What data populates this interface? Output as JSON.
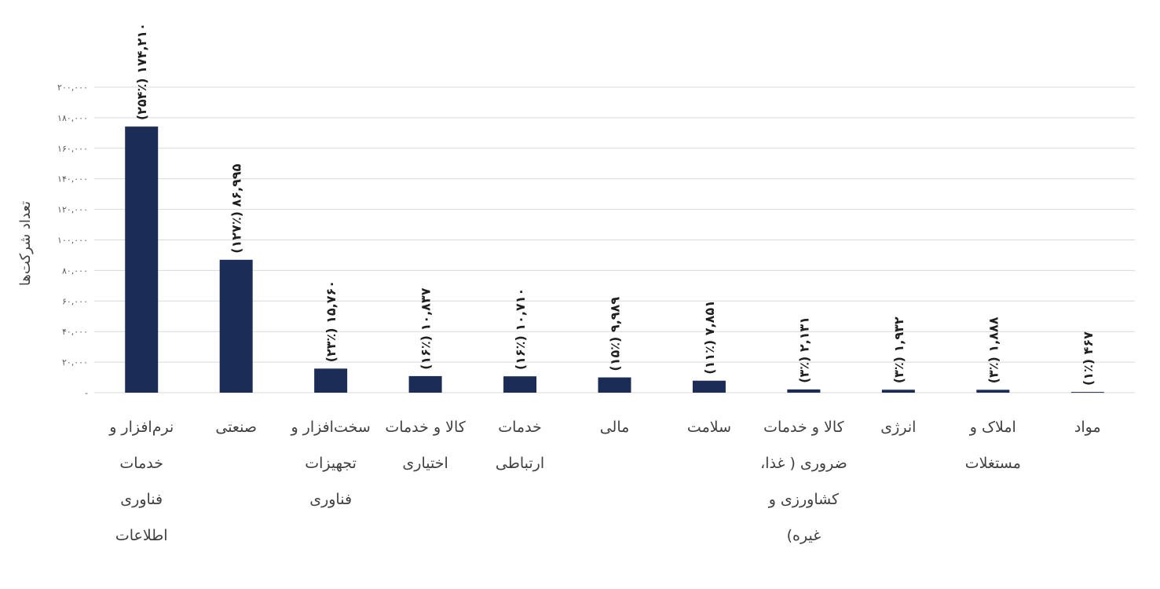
{
  "chart_data": {
    "type": "bar",
    "ylabel": "تعداد شرکت‌ها",
    "ylim": [
      0,
      200000
    ],
    "grid": true,
    "bar_color": "#1b2c57",
    "grid_color": "#d9d9d9",
    "y_ticks": [
      {
        "value": 0,
        "label": "-"
      },
      {
        "value": 20000,
        "label": "۲۰,۰۰۰"
      },
      {
        "value": 40000,
        "label": "۴۰,۰۰۰"
      },
      {
        "value": 60000,
        "label": "۶۰,۰۰۰"
      },
      {
        "value": 80000,
        "label": "۸۰,۰۰۰"
      },
      {
        "value": 100000,
        "label": "۱۰۰,۰۰۰"
      },
      {
        "value": 120000,
        "label": "۱۲۰,۰۰۰"
      },
      {
        "value": 140000,
        "label": "۱۴۰,۰۰۰"
      },
      {
        "value": 160000,
        "label": "۱۶۰,۰۰۰"
      },
      {
        "value": 180000,
        "label": "۱۸۰,۰۰۰"
      },
      {
        "value": 200000,
        "label": "۲۰۰,۰۰۰"
      }
    ],
    "categories": [
      "نرم‌افزار و خدمات فناوری اطلاعات",
      "صنعتی",
      "سخت‌افزار و تجهیزات فناوری",
      "کالا و خدمات اختیاری",
      "خدمات ارتباطی",
      "مالی",
      "سلامت",
      "کالا و خدمات ضروری ( غذا، کشاورزی و غیره)",
      "انرژی",
      "املاک و مستغلات",
      "مواد"
    ],
    "category_lines": [
      [
        "نرم‌افزار و",
        "خدمات",
        "فناوری",
        "اطلاعات"
      ],
      [
        "صنعتی"
      ],
      [
        "سخت‌افزار و",
        "تجهیزات",
        "فناوری"
      ],
      [
        "کالا و خدمات",
        "اختیاری"
      ],
      [
        "خدمات",
        "ارتباطی"
      ],
      [
        "مالی"
      ],
      [
        "سلامت"
      ],
      [
        "کالا و خدمات",
        "ضروری ( غذا،",
        "کشاورزی و",
        "غیره)"
      ],
      [
        "انرژی"
      ],
      [
        "املاک و",
        "مستغلات"
      ],
      [
        "مواد"
      ]
    ],
    "values": [
      174210,
      86995,
      15760,
      10837,
      10710,
      9989,
      7851,
      2131,
      1932,
      1888,
      467
    ],
    "data_labels": [
      "۱۷۴,۲۱۰ (۲۵۴٪)",
      "۸۶,۹۹۵ (۱۲۷٪)",
      "۱۵,۷۶۰ (۲۳٪)",
      "۱۰,۸۳۷ (۱۶٪)",
      "۱۰,۷۱۰ (۱۶٪)",
      "۹,۹۸۹ (۱۵٪)",
      "۷,۸۵۱ (۱۱٪)",
      "۲,۱۳۱ (۳٪)",
      "۱,۹۳۲ (۳٪)",
      "۱,۸۸۸ (۳٪)",
      "۴۶۷ (۱٪)"
    ]
  }
}
